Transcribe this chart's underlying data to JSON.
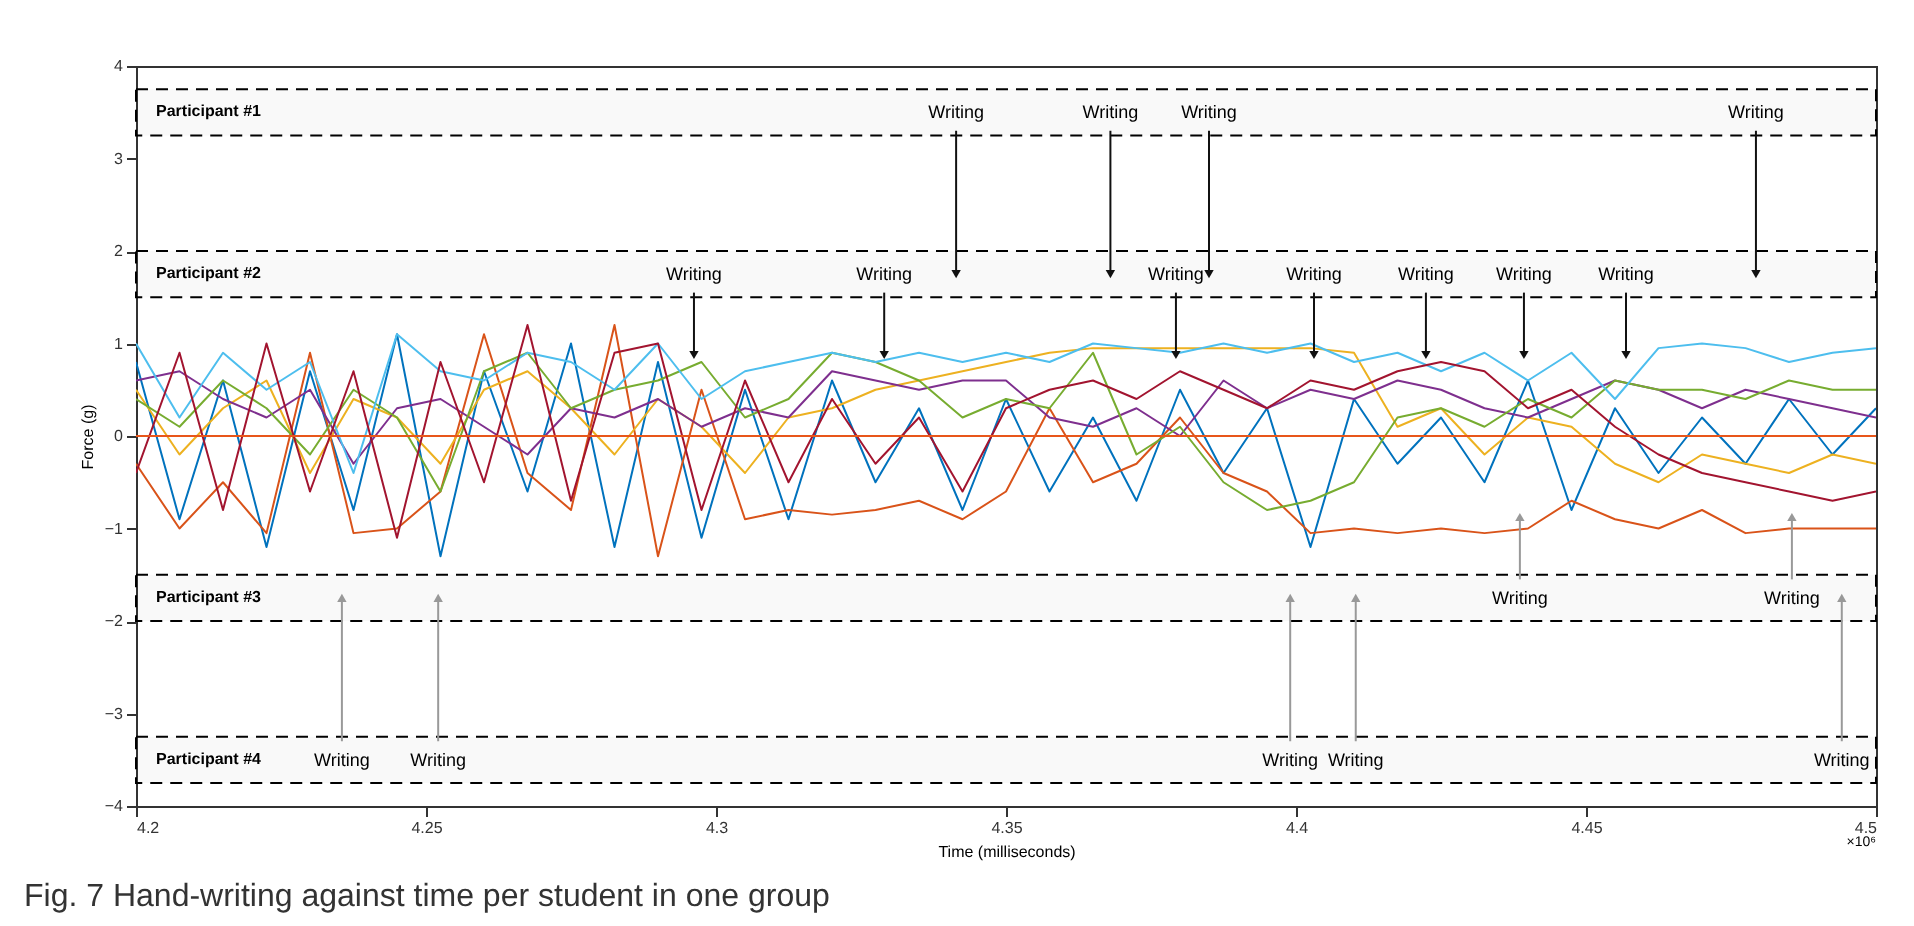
{
  "chart_data": {
    "type": "line",
    "xlabel": "Time (milliseconds)",
    "ylabel": "Force (g)",
    "xlim": [
      4.2,
      4.5
    ],
    "xticks": [
      4.2,
      4.25,
      4.3,
      4.35,
      4.4,
      4.45,
      4.5
    ],
    "ylim": [
      -4,
      4
    ],
    "yticks": [
      -4,
      -3,
      -2,
      -1,
      0,
      1,
      2,
      3,
      4
    ],
    "grid": false,
    "legend": false,
    "marker": "none",
    "line_style": "solid",
    "x": [
      4.2,
      4.2075,
      4.215,
      4.2225,
      4.23,
      4.2375,
      4.245,
      4.2525,
      4.26,
      4.2675,
      4.275,
      4.2825,
      4.29,
      4.2975,
      4.305,
      4.3125,
      4.32,
      4.3275,
      4.335,
      4.3425,
      4.35,
      4.3575,
      4.365,
      4.3725,
      4.38,
      4.3875,
      4.395,
      4.4025,
      4.41,
      4.4175,
      4.425,
      4.4325,
      4.44,
      4.4475,
      4.455,
      4.4625,
      4.47,
      4.4775,
      4.485,
      4.4925,
      4.5
    ],
    "series": [
      {
        "color": "#0072bd",
        "values": [
          0.8,
          -0.9,
          0.6,
          -1.2,
          0.7,
          -0.8,
          1.1,
          -1.3,
          0.7,
          -0.6,
          1.0,
          -1.2,
          0.8,
          -1.1,
          0.5,
          -0.9,
          0.6,
          -0.5,
          0.3,
          -0.8,
          0.4,
          -0.6,
          0.2,
          -0.7,
          0.5,
          -0.4,
          0.3,
          -1.2,
          0.4,
          -0.3,
          0.2,
          -0.5,
          0.6,
          -0.8,
          0.3,
          -0.4,
          0.2,
          -0.3,
          0.4,
          -0.2,
          0.3
        ]
      },
      {
        "color": "#d95319",
        "values": [
          -0.3,
          -1.0,
          -0.5,
          -1.05,
          0.9,
          -1.05,
          -1.0,
          -0.6,
          1.1,
          -0.4,
          -0.8,
          1.2,
          -1.3,
          0.5,
          -0.9,
          -0.8,
          -0.85,
          -0.8,
          -0.7,
          -0.9,
          -0.6,
          0.3,
          -0.5,
          -0.3,
          0.2,
          -0.4,
          -0.6,
          -1.05,
          -1.0,
          -1.05,
          -1.0,
          -1.05,
          -1.0,
          -0.7,
          -0.9,
          -1.0,
          -0.8,
          -1.05,
          -1.0,
          -1.0,
          -1.0
        ]
      },
      {
        "color": "#edb120",
        "values": [
          0.5,
          -0.2,
          0.3,
          0.6,
          -0.4,
          0.4,
          0.2,
          -0.3,
          0.5,
          0.7,
          0.3,
          -0.2,
          0.4,
          0.1,
          -0.4,
          0.2,
          0.3,
          0.5,
          0.6,
          0.7,
          0.8,
          0.9,
          0.95,
          0.95,
          0.95,
          0.95,
          0.95,
          0.95,
          0.9,
          0.1,
          0.3,
          -0.2,
          0.2,
          0.1,
          -0.3,
          -0.5,
          -0.2,
          -0.3,
          -0.4,
          -0.2,
          -0.3
        ]
      },
      {
        "color": "#7e2f8e",
        "values": [
          0.6,
          0.7,
          0.4,
          0.2,
          0.5,
          -0.3,
          0.3,
          0.4,
          0.1,
          -0.2,
          0.3,
          0.2,
          0.4,
          0.1,
          0.3,
          0.2,
          0.7,
          0.6,
          0.5,
          0.6,
          0.6,
          0.2,
          0.1,
          0.3,
          0.0,
          0.6,
          0.3,
          0.5,
          0.4,
          0.6,
          0.5,
          0.3,
          0.2,
          0.4,
          0.6,
          0.5,
          0.3,
          0.5,
          0.4,
          0.3,
          0.2
        ]
      },
      {
        "color": "#77ac30",
        "values": [
          0.4,
          0.1,
          0.6,
          0.3,
          -0.2,
          0.5,
          0.2,
          -0.6,
          0.7,
          0.9,
          0.3,
          0.5,
          0.6,
          0.8,
          0.2,
          0.4,
          0.9,
          0.8,
          0.6,
          0.2,
          0.4,
          0.3,
          0.9,
          -0.2,
          0.1,
          -0.5,
          -0.8,
          -0.7,
          -0.5,
          0.2,
          0.3,
          0.1,
          0.4,
          0.2,
          0.6,
          0.5,
          0.5,
          0.4,
          0.6,
          0.5,
          0.5
        ]
      },
      {
        "color": "#4dbeee",
        "values": [
          1.0,
          0.2,
          0.9,
          0.5,
          0.8,
          -0.4,
          1.1,
          0.7,
          0.6,
          0.9,
          0.8,
          0.5,
          1.0,
          0.4,
          0.7,
          0.8,
          0.9,
          0.8,
          0.9,
          0.8,
          0.9,
          0.8,
          1.0,
          0.95,
          0.9,
          1.0,
          0.9,
          1.0,
          0.8,
          0.9,
          0.7,
          0.9,
          0.6,
          0.9,
          0.4,
          0.95,
          1.0,
          0.95,
          0.8,
          0.9,
          0.95
        ]
      },
      {
        "color": "#a2142f",
        "values": [
          -0.4,
          0.9,
          -0.8,
          1.0,
          -0.6,
          0.7,
          -1.1,
          0.8,
          -0.5,
          1.2,
          -0.7,
          0.9,
          1.0,
          -0.8,
          0.6,
          -0.5,
          0.4,
          -0.3,
          0.2,
          -0.6,
          0.3,
          0.5,
          0.6,
          0.4,
          0.7,
          0.5,
          0.3,
          0.6,
          0.5,
          0.7,
          0.8,
          0.7,
          0.3,
          0.5,
          0.1,
          -0.2,
          -0.4,
          -0.5,
          -0.6,
          -0.7,
          -0.6
        ]
      },
      {
        "color": "#e8561a",
        "x": [
          4.2,
          4.5
        ],
        "values": [
          0,
          0
        ]
      }
    ],
    "bands": [
      {
        "axis": "y",
        "from": 3.25,
        "to": 3.75,
        "label": "Participant #1"
      },
      {
        "axis": "y",
        "from": 1.5,
        "to": 2.0,
        "label": "Participant #2"
      },
      {
        "axis": "y",
        "from": -2.0,
        "to": -1.5,
        "label": "Participant #3"
      },
      {
        "axis": "y",
        "from": -3.75,
        "to": -3.25,
        "label": "Participant #4"
      }
    ],
    "annotations": [
      {
        "text": "Writing",
        "x": 4.3414,
        "y": 1.75
      },
      {
        "text": "Writing",
        "x": 4.368,
        "y": 1.75
      },
      {
        "text": "Writing",
        "x": 4.385,
        "y": 1.75
      },
      {
        "text": "Writing",
        "x": 4.4793,
        "y": 1.75
      },
      {
        "text": "Writing",
        "x": 4.2962,
        "y": 0.875
      },
      {
        "text": "Writing",
        "x": 4.329,
        "y": 0.875
      },
      {
        "text": "Writing",
        "x": 4.3793,
        "y": 0.875
      },
      {
        "text": "Writing",
        "x": 4.4031,
        "y": 0.875
      },
      {
        "text": "Writing",
        "x": 4.4224,
        "y": 0.875
      },
      {
        "text": "Writing",
        "x": 4.4393,
        "y": 0.875
      },
      {
        "text": "Writing",
        "x": 4.4569,
        "y": 0.875
      },
      {
        "text": "Writing",
        "x": 4.4386,
        "y": -0.875
      },
      {
        "text": "Writing",
        "x": 4.4855,
        "y": -0.875
      },
      {
        "text": "Writing",
        "x": 4.2355,
        "y": -1.75
      },
      {
        "text": "Writing",
        "x": 4.2521,
        "y": -1.75
      },
      {
        "text": "Writing",
        "x": 4.399,
        "y": -1.75
      },
      {
        "text": "Writing",
        "x": 4.4103,
        "y": -1.75
      },
      {
        "text": "Writing",
        "x": 4.4941,
        "y": -1.75
      },
      "×10⁶",
      "Fig. 7 Hand-writing against time per student in one group"
    ]
  }
}
